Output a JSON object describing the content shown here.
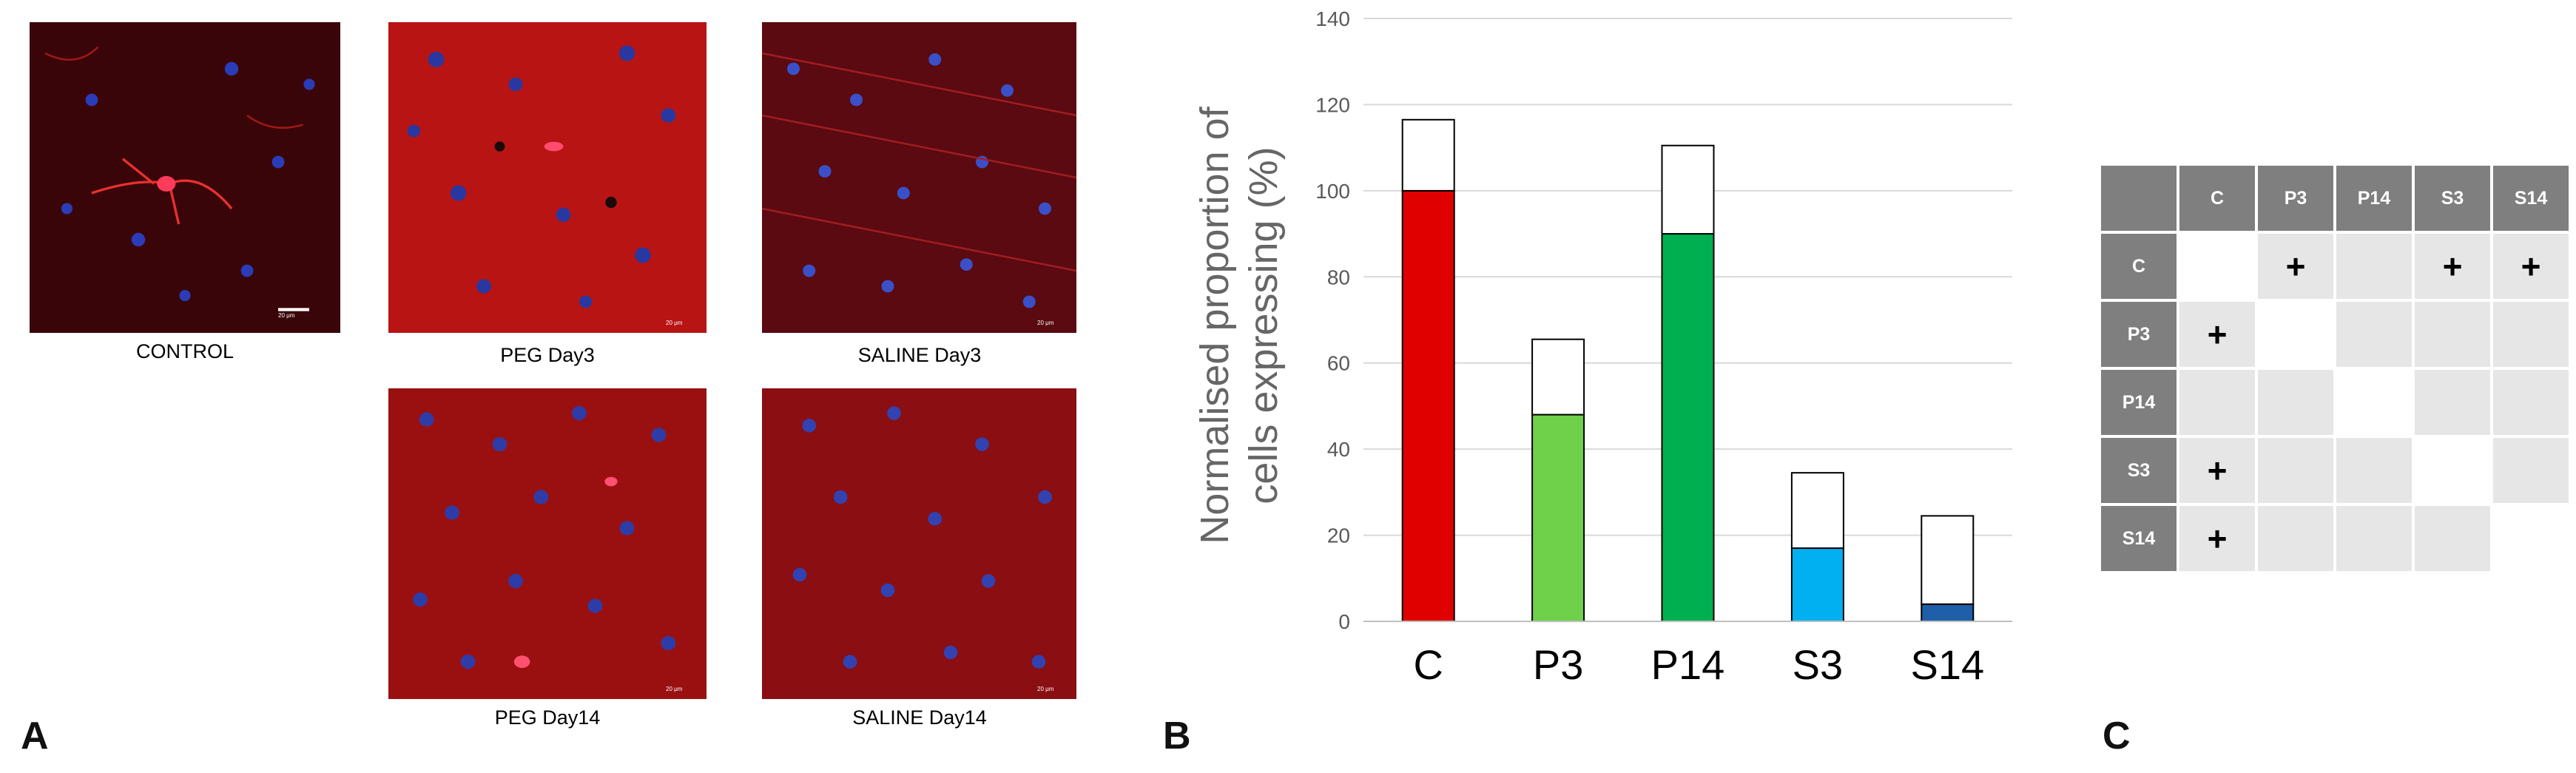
{
  "panel_labels": {
    "a": "A",
    "b": "B",
    "c": "C"
  },
  "panel_a": {
    "images": [
      {
        "id": "control",
        "caption": "CONTROL",
        "scale_bar_label": "20 μm"
      },
      {
        "id": "peg-day3",
        "caption": "PEG Day3",
        "scale_bar_label": "20 μm"
      },
      {
        "id": "saline-day3",
        "caption": "SALINE Day3",
        "scale_bar_label": "20 μm"
      },
      {
        "id": "peg-day14",
        "caption": "PEG Day14",
        "scale_bar_label": "20 μm"
      },
      {
        "id": "saline-day14",
        "caption": "SALINE Day14",
        "scale_bar_label": "20 μm"
      }
    ]
  },
  "chart_data": {
    "type": "bar",
    "stacked": true,
    "categories": [
      "C",
      "P3",
      "P14",
      "S3",
      "S14"
    ],
    "ylabel": "Normalised proportion of cells expressing (%)",
    "ylabel_lines": [
      "Normalised proportion of",
      "cells expressing (%)"
    ],
    "ylim": [
      0,
      140
    ],
    "yticks": [
      0,
      20,
      40,
      60,
      80,
      100,
      120,
      140
    ],
    "grid": true,
    "series": [
      {
        "values": [
          100,
          48,
          90,
          17,
          4
        ],
        "colors": [
          "#e00000",
          "#6fd04a",
          "#00b050",
          "#00b0f0",
          "#1f5fa8"
        ]
      },
      {
        "values": [
          16.5,
          17.5,
          20.5,
          17.5,
          20.5
        ],
        "colors": [
          "#ffffff",
          "#ffffff",
          "#ffffff",
          "#ffffff",
          "#ffffff"
        ]
      }
    ]
  },
  "panel_c": {
    "headers": [
      "C",
      "P3",
      "P14",
      "S3",
      "S14"
    ],
    "rows": [
      {
        "label": "C",
        "cells": [
          null,
          "+",
          "",
          "+",
          "+"
        ]
      },
      {
        "label": "P3",
        "cells": [
          "+",
          null,
          "",
          "",
          ""
        ]
      },
      {
        "label": "P14",
        "cells": [
          "",
          "",
          null,
          "",
          ""
        ]
      },
      {
        "label": "S3",
        "cells": [
          "+",
          "",
          "",
          null,
          ""
        ]
      },
      {
        "label": "S14",
        "cells": [
          "+",
          "",
          "",
          "",
          null
        ]
      }
    ],
    "colors": {
      "header": "#7f7f7f",
      "cell": "#e6e6e6",
      "diagonal": "#ffffff"
    }
  }
}
